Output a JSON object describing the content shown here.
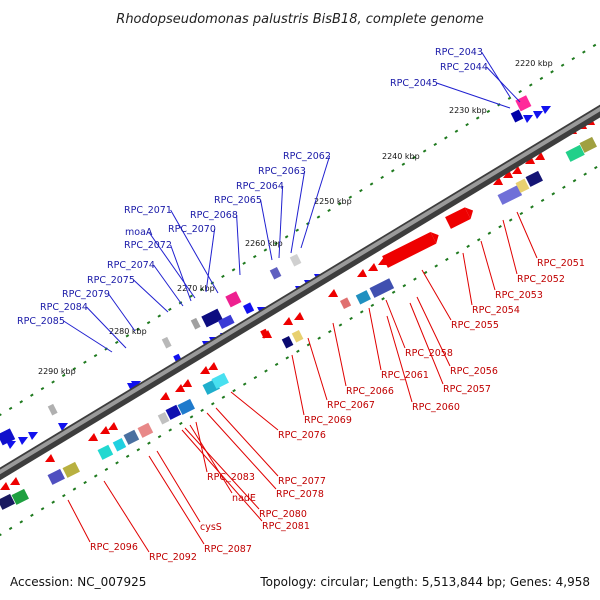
{
  "title": "Rhodopseudomonas palustris BisB18, complete genome",
  "footer": {
    "accession": "Accession: NC_007925",
    "summary": "Topology: circular; Length: 5,513,844 bp; Genes: 4,958"
  },
  "ticks": [
    "2220 kbp",
    "2230 kbp",
    "2240 kbp",
    "2250 kbp",
    "2260 kbp",
    "2270 kbp",
    "2280 kbp",
    "2290 kbp"
  ],
  "genes_forward": [
    "RPC_2043",
    "RPC_2044",
    "RPC_2045",
    "RPC_2062",
    "RPC_2063",
    "RPC_2064",
    "RPC_2065",
    "RPC_2068",
    "RPC_2071",
    "RPC_2070",
    "moaA",
    "RPC_2072",
    "RPC_2074",
    "RPC_2075",
    "RPC_2079",
    "RPC_2084",
    "RPC_2085"
  ],
  "genes_reverse": [
    "RPC_2051",
    "RPC_2052",
    "RPC_2053",
    "RPC_2054",
    "RPC_2055",
    "RPC_2058",
    "RPC_2056",
    "RPC_2057",
    "RPC_2061",
    "RPC_2060",
    "RPC_2066",
    "RPC_2067",
    "RPC_2069",
    "RPC_2076",
    "RPC_2077",
    "RPC_2078",
    "RPC_2083",
    "nadE",
    "RPC_2080",
    "RPC_2081",
    "cysS",
    "RPC_2087",
    "RPC_2092",
    "RPC_2096"
  ]
}
